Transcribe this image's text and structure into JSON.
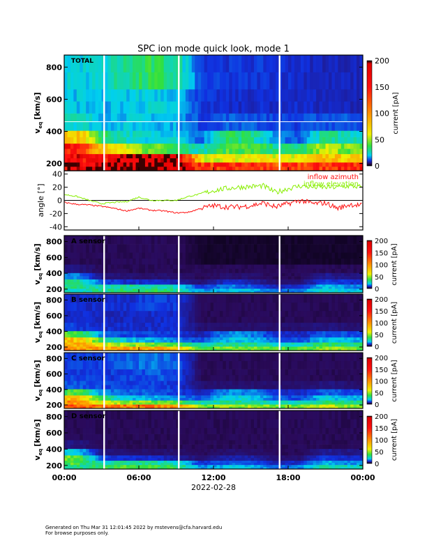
{
  "title": "SPC ion mode quick look, mode 1",
  "footer": {
    "generated": "Generated on Thu Mar 31 12:01:45 2022 by mstevens@cfa.harvard.edu",
    "note": "For browse purposes only."
  },
  "x_axis": {
    "tick_labels": [
      "00:00",
      "06:00",
      "12:00",
      "18:00",
      "00:00"
    ],
    "tick_hours": [
      0,
      6,
      12,
      18,
      24
    ],
    "date_label": "2022-02-28",
    "range_hours": [
      0,
      24
    ]
  },
  "colors": {
    "azimuth": "#ff1010",
    "elevation": "#88ee00"
  },
  "chart_data": [
    {
      "type": "heatmap",
      "panel": "TOTAL",
      "label": "TOTAL",
      "ylabel": "v_eq [km/s]",
      "ylabel_main": "v",
      "ylabel_sub": "eq",
      "ylabel_unit": "[km/s]",
      "ylim": [
        155,
        875
      ],
      "yticks": [
        200,
        400,
        600,
        800
      ],
      "colorbar": {
        "label": "current [pA]",
        "range": [
          0,
          200
        ],
        "ticks": [
          0,
          50,
          100,
          150,
          200
        ]
      },
      "data_gaps_hours": [
        3.2,
        9.2,
        17.3
      ],
      "time_bins_hours": [
        0,
        2,
        4,
        6,
        8,
        10,
        12,
        14,
        16,
        18,
        20,
        22
      ],
      "v_bins": [
        185,
        230,
        290,
        360,
        450,
        575,
        750
      ],
      "values": [
        [
          180,
          190,
          200,
          200,
          200,
          140,
          140,
          140,
          120,
          130,
          140,
          150
        ],
        [
          170,
          150,
          200,
          200,
          200,
          60,
          60,
          70,
          60,
          60,
          80,
          70
        ],
        [
          160,
          80,
          55,
          45,
          40,
          25,
          40,
          40,
          30,
          30,
          55,
          45
        ],
        [
          80,
          35,
          25,
          22,
          22,
          12,
          35,
          30,
          15,
          12,
          30,
          25
        ],
        [
          25,
          20,
          20,
          20,
          18,
          10,
          12,
          12,
          10,
          10,
          12,
          12
        ],
        [
          20,
          18,
          20,
          22,
          20,
          9,
          8,
          8,
          8,
          8,
          7,
          7
        ],
        [
          22,
          22,
          30,
          35,
          30,
          10,
          9,
          9,
          9,
          8,
          7,
          7
        ]
      ]
    },
    {
      "type": "line",
      "panel": "angle",
      "ylabel": "angle [°]",
      "ylim": [
        -45,
        45
      ],
      "yticks": [
        -40,
        -20,
        0,
        20,
        40
      ],
      "legend": [
        "inflow azimuth",
        "inflow elevation"
      ],
      "legend_placement": "top-right",
      "x_hours": [
        0,
        1,
        2,
        3,
        4,
        5,
        6,
        7,
        8,
        9,
        10,
        11,
        12,
        13,
        14,
        15,
        16,
        17,
        18,
        19,
        20,
        21,
        22,
        23,
        24
      ],
      "series": [
        {
          "name": "inflow azimuth",
          "values": [
            -3,
            -6,
            -7,
            -9,
            -12,
            -16,
            -12,
            -15,
            -16,
            -19,
            -18,
            -12,
            -8,
            -10,
            -10,
            -8,
            -4,
            -10,
            -5,
            0,
            -5,
            -4,
            -12,
            -6,
            -8
          ]
        },
        {
          "name": "inflow elevation",
          "values": [
            9,
            6,
            0,
            -5,
            -3,
            -2,
            5,
            0,
            0,
            0,
            6,
            10,
            15,
            18,
            20,
            21,
            22,
            12,
            18,
            22,
            20,
            20,
            20,
            22,
            20
          ]
        }
      ]
    },
    {
      "type": "heatmap",
      "panel": "A",
      "label": "A sensor",
      "ylabel": "v_eq [km/s]",
      "ylabel_main": "v",
      "ylabel_sub": "eq",
      "ylabel_unit": "[km/s]",
      "ylim": [
        155,
        875
      ],
      "yticks": [
        200,
        400,
        600,
        800
      ],
      "colorbar": {
        "label": "current [pA]",
        "range": [
          0,
          200
        ],
        "ticks": [
          0,
          50,
          100,
          150,
          200
        ]
      },
      "data_gaps_hours": [
        3.2,
        9.2,
        17.3
      ],
      "time_bins_hours": [
        0,
        2,
        4,
        6,
        8,
        10,
        12,
        14,
        16,
        18,
        20,
        22
      ],
      "v_bins": [
        185,
        230,
        290,
        360,
        450,
        575,
        750
      ],
      "values": [
        [
          25,
          30,
          35,
          35,
          30,
          15,
          20,
          20,
          12,
          15,
          25,
          20
        ],
        [
          30,
          25,
          30,
          28,
          25,
          8,
          15,
          12,
          6,
          8,
          20,
          15
        ],
        [
          30,
          10,
          8,
          8,
          6,
          3,
          8,
          6,
          3,
          3,
          10,
          8
        ],
        [
          15,
          4,
          3,
          3,
          3,
          2,
          3,
          3,
          2,
          2,
          5,
          4
        ],
        [
          4,
          2,
          2,
          2,
          2,
          2,
          2,
          2,
          2,
          2,
          2,
          2
        ],
        [
          2,
          2,
          2,
          2,
          2,
          1,
          1,
          1,
          1,
          1,
          1,
          1
        ],
        [
          2,
          2,
          2,
          2,
          2,
          1,
          1,
          1,
          1,
          1,
          1,
          1
        ]
      ]
    },
    {
      "type": "heatmap",
      "panel": "B",
      "label": "B sensor",
      "ylabel": "v_eq [km/s]",
      "ylabel_main": "v",
      "ylabel_sub": "eq",
      "ylabel_unit": "[km/s]",
      "ylim": [
        155,
        875
      ],
      "yticks": [
        200,
        400,
        600,
        800
      ],
      "colorbar": {
        "label": "current [pA]",
        "range": [
          0,
          200
        ],
        "ticks": [
          0,
          50,
          100,
          150,
          200
        ]
      },
      "data_gaps_hours": [
        3.2,
        9.2,
        17.3
      ],
      "time_bins_hours": [
        0,
        2,
        4,
        6,
        8,
        10,
        12,
        14,
        16,
        18,
        20,
        22
      ],
      "v_bins": [
        185,
        230,
        290,
        360,
        450,
        575,
        750
      ],
      "values": [
        [
          100,
          90,
          90,
          90,
          80,
          40,
          45,
          45,
          40,
          40,
          50,
          45
        ],
        [
          90,
          60,
          50,
          45,
          40,
          25,
          30,
          30,
          25,
          25,
          35,
          30
        ],
        [
          80,
          35,
          20,
          18,
          15,
          10,
          20,
          20,
          12,
          10,
          20,
          18
        ],
        [
          40,
          15,
          10,
          10,
          9,
          6,
          15,
          15,
          8,
          7,
          12,
          10
        ],
        [
          10,
          8,
          8,
          8,
          8,
          3,
          3,
          3,
          3,
          3,
          4,
          3
        ],
        [
          8,
          7,
          7,
          8,
          8,
          2,
          2,
          2,
          2,
          2,
          2,
          2
        ],
        [
          8,
          8,
          8,
          10,
          9,
          2,
          2,
          2,
          2,
          2,
          2,
          2
        ]
      ]
    },
    {
      "type": "heatmap",
      "panel": "C",
      "label": "C sensor",
      "ylabel": "v_eq [km/s]",
      "ylabel_main": "v",
      "ylabel_sub": "eq",
      "ylabel_unit": "[km/s]",
      "ylim": [
        155,
        875
      ],
      "yticks": [
        200,
        400,
        600,
        800
      ],
      "colorbar": {
        "label": "current [pA]",
        "range": [
          0,
          200
        ],
        "ticks": [
          0,
          50,
          100,
          150,
          200
        ]
      },
      "data_gaps_hours": [
        3.2,
        9.2,
        17.3
      ],
      "time_bins_hours": [
        0,
        2,
        4,
        6,
        8,
        10,
        12,
        14,
        16,
        18,
        20,
        22
      ],
      "v_bins": [
        185,
        230,
        290,
        360,
        450,
        575,
        750
      ],
      "values": [
        [
          120,
          110,
          110,
          110,
          100,
          45,
          50,
          50,
          45,
          45,
          60,
          50
        ],
        [
          100,
          60,
          50,
          45,
          40,
          25,
          30,
          30,
          25,
          25,
          35,
          30
        ],
        [
          85,
          35,
          20,
          18,
          15,
          10,
          22,
          22,
          12,
          10,
          22,
          18
        ],
        [
          40,
          15,
          12,
          12,
          10,
          6,
          15,
          15,
          8,
          7,
          12,
          10
        ],
        [
          12,
          10,
          10,
          10,
          9,
          3,
          3,
          3,
          3,
          3,
          4,
          3
        ],
        [
          10,
          9,
          10,
          12,
          11,
          2,
          2,
          2,
          2,
          2,
          2,
          2
        ],
        [
          10,
          10,
          12,
          14,
          12,
          2,
          2,
          2,
          2,
          2,
          2,
          2
        ]
      ]
    },
    {
      "type": "heatmap",
      "panel": "D",
      "label": "D sensor",
      "ylabel": "v_eq [km/s]",
      "ylabel_main": "v",
      "ylabel_sub": "eq",
      "ylabel_unit": "[km/s]",
      "ylim": [
        155,
        875
      ],
      "yticks": [
        200,
        400,
        600,
        800
      ],
      "colorbar": {
        "label": "current [pA]",
        "range": [
          0,
          200
        ],
        "ticks": [
          0,
          50,
          100,
          150,
          200
        ]
      },
      "data_gaps_hours": [
        3.2,
        9.2,
        17.3
      ],
      "time_bins_hours": [
        0,
        2,
        4,
        6,
        8,
        10,
        12,
        14,
        16,
        18,
        20,
        22
      ],
      "v_bins": [
        185,
        230,
        290,
        360,
        450,
        575,
        750
      ],
      "values": [
        [
          30,
          35,
          40,
          40,
          35,
          15,
          20,
          20,
          12,
          15,
          30,
          25
        ],
        [
          40,
          25,
          30,
          28,
          25,
          8,
          12,
          12,
          6,
          8,
          20,
          15
        ],
        [
          45,
          10,
          8,
          8,
          6,
          3,
          6,
          6,
          3,
          3,
          10,
          8
        ],
        [
          20,
          4,
          3,
          3,
          3,
          2,
          3,
          3,
          2,
          2,
          5,
          4
        ],
        [
          4,
          2,
          2,
          2,
          2,
          2,
          2,
          2,
          2,
          2,
          2,
          2
        ],
        [
          2,
          2,
          2,
          2,
          2,
          2,
          2,
          2,
          2,
          2,
          2,
          2
        ],
        [
          2,
          2,
          2,
          2,
          2,
          2,
          2,
          2,
          2,
          2,
          2,
          2
        ]
      ]
    }
  ]
}
